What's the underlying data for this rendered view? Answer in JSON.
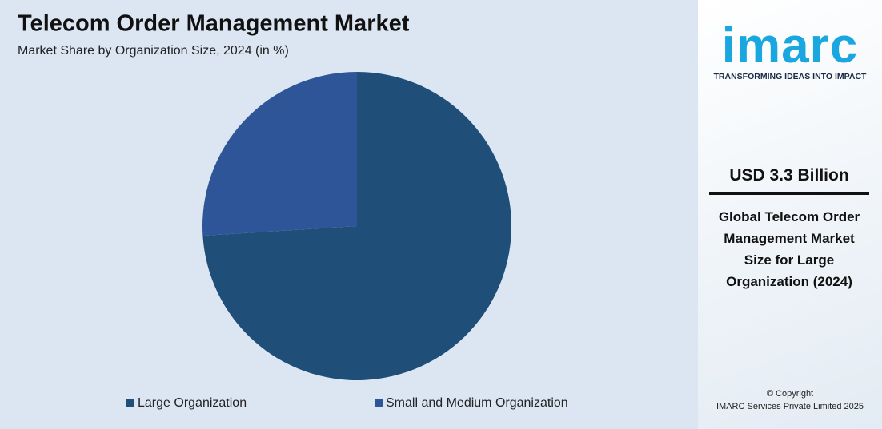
{
  "chart_data": {
    "type": "pie",
    "title": "Telecom Order Management Market",
    "subtitle": "Market Share by Organization Size, 2024 (in %)",
    "categories": [
      "Large Organization",
      "Small and Medium Organization"
    ],
    "values": [
      74,
      26
    ],
    "colors": [
      "#1f4e79",
      "#2e5597"
    ],
    "legend": "bottom"
  },
  "sidebar": {
    "logo": "imarc",
    "tagline": "TRANSFORMING IDEAS INTO IMPACT",
    "headline": "USD 3.3 Billion",
    "description": "Global Telecom Order Management Market Size for Large Organization (2024)",
    "copyright": "© Copyright",
    "company": "IMARC Services Private Limited 2025"
  }
}
